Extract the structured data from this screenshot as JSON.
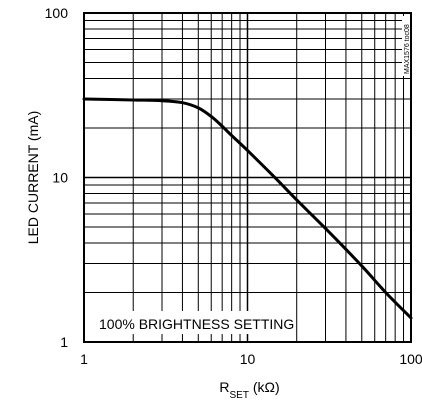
{
  "chart_data": {
    "type": "line",
    "x_scale": "log",
    "y_scale": "log",
    "xlim": [
      1,
      100
    ],
    "ylim": [
      1,
      100
    ],
    "x_ticks": [
      1,
      10,
      100
    ],
    "y_ticks": [
      1,
      10,
      100
    ],
    "x_tick_labels": [
      "1",
      "10",
      "100"
    ],
    "y_tick_labels": [
      "1",
      "10",
      "100"
    ],
    "xlabel_main": "R",
    "xlabel_sub": "SET",
    "xlabel_unit": " (kΩ)",
    "ylabel": "LED CURRENT (mA)",
    "annotation": "100% BRIGHTNESS SETTING",
    "side_code": "MAX1576 toc08",
    "grid": true,
    "series": [
      {
        "color": "#000000",
        "x": [
          1,
          2,
          3,
          4,
          5,
          6,
          7,
          8,
          10,
          15,
          20,
          30,
          50,
          70,
          100
        ],
        "y": [
          30,
          29.6,
          29.3,
          28.5,
          26.5,
          23.5,
          20.5,
          18.0,
          14.6,
          9.8,
          7.3,
          4.9,
          2.9,
          2.0,
          1.4
        ]
      }
    ]
  }
}
